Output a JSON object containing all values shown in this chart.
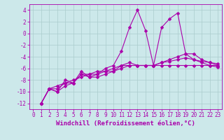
{
  "bg_color": "#cce8ea",
  "grid_color": "#aacccc",
  "line_color": "#aa00aa",
  "marker": "D",
  "marker_size": 2.5,
  "line_width": 0.8,
  "xlabel": "Windchill (Refroidissement éolien,°C)",
  "xlabel_fontsize": 6.5,
  "tick_fontsize": 5.5,
  "xlim": [
    -0.5,
    23.5
  ],
  "ylim": [
    -13,
    5
  ],
  "yticks": [
    -12,
    -10,
    -8,
    -6,
    -4,
    -2,
    0,
    2,
    4
  ],
  "xticks": [
    0,
    1,
    2,
    3,
    4,
    5,
    6,
    7,
    8,
    9,
    10,
    11,
    12,
    13,
    14,
    15,
    16,
    17,
    18,
    19,
    20,
    21,
    22,
    23
  ],
  "series": [
    [
      1,
      -12,
      2,
      -9.5,
      3,
      -10,
      4,
      -9,
      5,
      -8.5,
      6,
      -6.5,
      7,
      -7.5,
      8,
      -7,
      9,
      -6,
      10,
      -5.5,
      11,
      -3,
      12,
      1,
      13,
      4,
      14,
      0.5,
      15,
      -5.5,
      16,
      1,
      17,
      2.5,
      18,
      3.5,
      19,
      -3.5,
      20,
      -3.5,
      21,
      -4.5,
      22,
      -5,
      23,
      -5.5
    ],
    [
      1,
      -12,
      2,
      -9.5,
      3,
      -10,
      4,
      -8,
      5,
      -8.5,
      6,
      -7,
      7,
      -7.5,
      8,
      -7.5,
      9,
      -7,
      10,
      -6.5,
      11,
      -5.5,
      12,
      -5,
      13,
      -5.5,
      14,
      -5.5,
      15,
      -5.5,
      16,
      -5,
      17,
      -4.5,
      18,
      -4,
      19,
      -3.5,
      20,
      -4.5,
      21,
      -5,
      22,
      -5.5,
      23,
      -5.8
    ],
    [
      1,
      -12,
      2,
      -9.5,
      3,
      -9.5,
      4,
      -8.5,
      5,
      -8.5,
      6,
      -7,
      7,
      -7,
      8,
      -7,
      9,
      -6.5,
      10,
      -6.5,
      11,
      -6,
      12,
      -5.5,
      13,
      -5.5,
      14,
      -5.5,
      15,
      -5.5,
      16,
      -5,
      17,
      -4.8,
      18,
      -4.5,
      19,
      -4.2,
      20,
      -4.5,
      21,
      -4.8,
      22,
      -5,
      23,
      -5.2
    ],
    [
      1,
      -12,
      2,
      -9.5,
      3,
      -9,
      4,
      -8.5,
      5,
      -8,
      6,
      -7.5,
      7,
      -7,
      8,
      -6.5,
      9,
      -6.5,
      10,
      -6,
      11,
      -5.5,
      12,
      -5.5,
      13,
      -5.5,
      14,
      -5.5,
      15,
      -5.5,
      16,
      -5.5,
      17,
      -5.5,
      18,
      -5.5,
      19,
      -5.5,
      20,
      -5.5,
      21,
      -5.5,
      22,
      -5.5,
      23,
      -5.5
    ]
  ]
}
